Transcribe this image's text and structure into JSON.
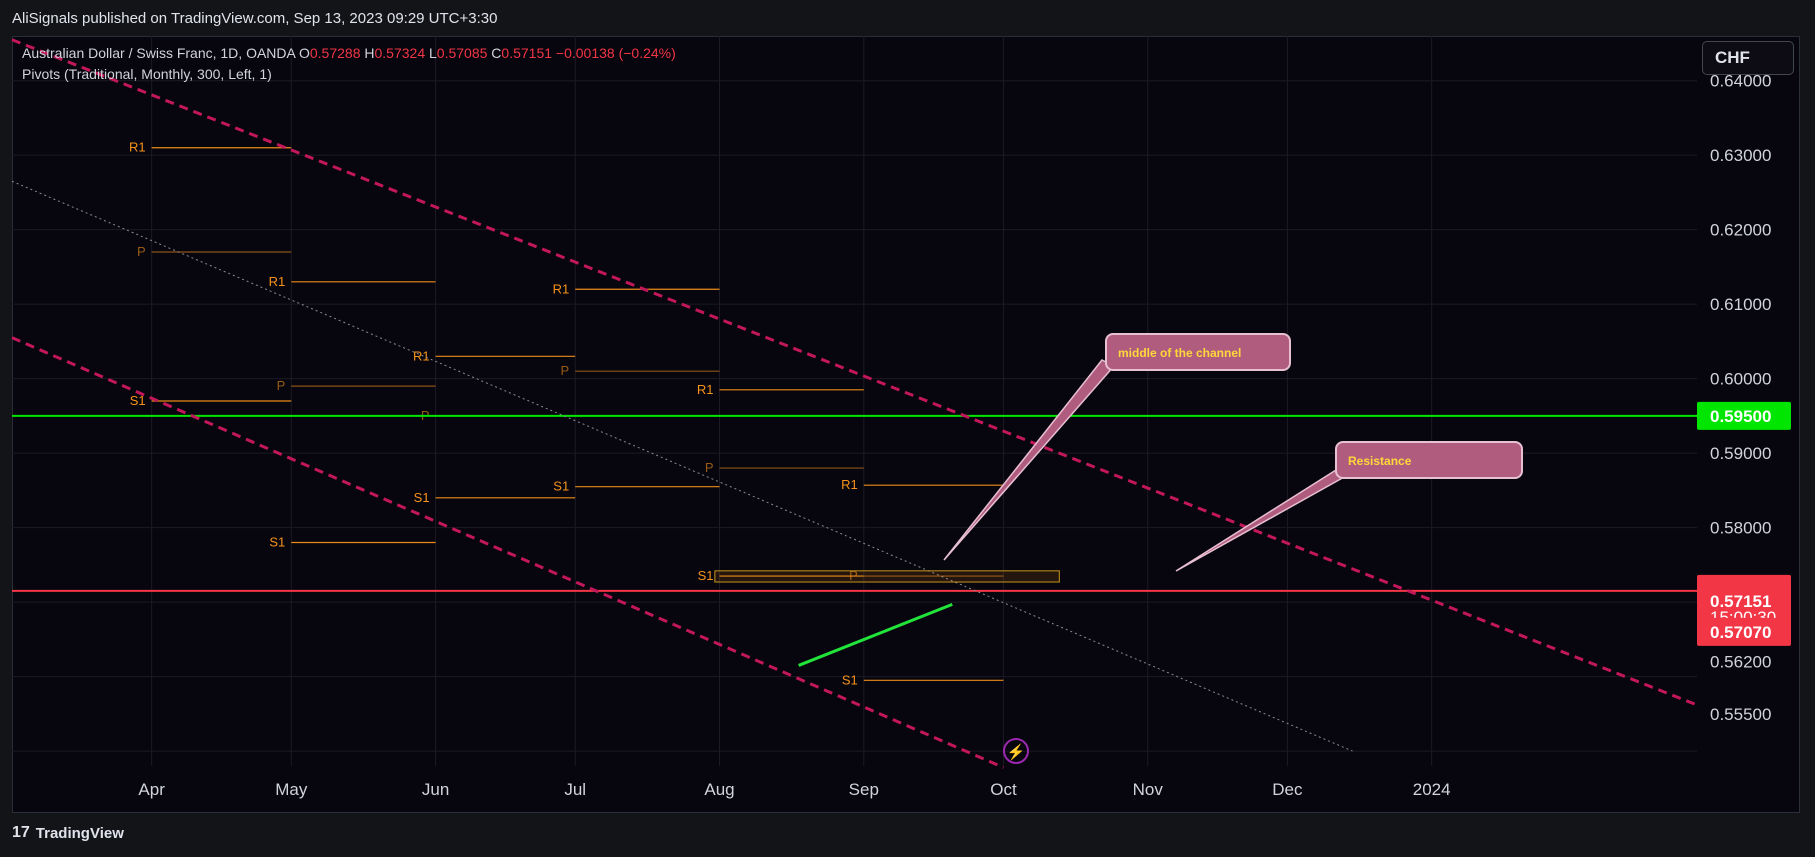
{
  "header": {
    "published": "AliSignals published on TradingView.com, Sep 13, 2023 09:29 UTC+3:30"
  },
  "legend": {
    "symbol": "Australian Dollar / Swiss Franc, 1D, OANDA",
    "o_label": "O",
    "o_val": "0.57288",
    "h_label": "H",
    "h_val": "0.57324",
    "l_label": "L",
    "l_val": "0.57085",
    "c_label": "C",
    "c_val": "0.57151",
    "change": "−0.00138 (−0.24%)",
    "indicator": "Pivots (Traditional, Monthly, 300, Left, 1)"
  },
  "currency_button": "CHF",
  "price_axis": {
    "ticks": [
      "0.64000",
      "0.63000",
      "0.62000",
      "0.61000",
      "0.60000",
      "0.59000",
      "0.58000",
      "0.56200",
      "0.55500"
    ],
    "tags": {
      "resistance": "0.59500",
      "last": "0.57151",
      "countdown": "15:00:30",
      "low": "0.57070"
    }
  },
  "time_axis": {
    "labels": [
      "Apr",
      "May",
      "Jun",
      "Jul",
      "Aug",
      "Sep",
      "Oct",
      "Nov",
      "Dec",
      "2024"
    ]
  },
  "annotations": {
    "middle": "middle of the channel",
    "resistance": "Resistance"
  },
  "footer": {
    "brand": "TradingView"
  },
  "colors": {
    "up": "#26a69a",
    "down": "#f23645",
    "pivot": "#f7931a",
    "resistance": "#00e600",
    "channel": "#c2185b",
    "callout": "#b05c7e"
  },
  "chart_data": {
    "type": "candlestick",
    "title": "Australian Dollar / Swiss Franc, 1D, OANDA",
    "ylim": [
      0.548,
      0.646
    ],
    "x_range": [
      "2023-03-02",
      "2024-02-27"
    ],
    "candles": [],
    "pivot_levels": [
      {
        "label": "R1",
        "x": [
          "2023-04-01",
          "2023-05-01"
        ],
        "y": 0.631
      },
      {
        "label": "S1",
        "x": [
          "2023-04-01",
          "2023-05-01"
        ],
        "y": 0.597
      },
      {
        "label": "P",
        "x": [
          "2023-04-01",
          "2023-05-01"
        ],
        "y": 0.617
      },
      {
        "label": "R1",
        "x": [
          "2023-05-01",
          "2023-06-01"
        ],
        "y": 0.613
      },
      {
        "label": "P",
        "x": [
          "2023-05-01",
          "2023-06-01"
        ],
        "y": 0.599
      },
      {
        "label": "S1",
        "x": [
          "2023-05-01",
          "2023-06-01"
        ],
        "y": 0.578
      },
      {
        "label": "R1",
        "x": [
          "2023-06-01",
          "2023-07-01"
        ],
        "y": 0.603
      },
      {
        "label": "P",
        "x": [
          "2023-06-01",
          "2023-07-01"
        ],
        "y": 0.595
      },
      {
        "label": "S1",
        "x": [
          "2023-06-01",
          "2023-07-01"
        ],
        "y": 0.584
      },
      {
        "label": "R1",
        "x": [
          "2023-07-01",
          "2023-08-01"
        ],
        "y": 0.612
      },
      {
        "label": "P",
        "x": [
          "2023-07-01",
          "2023-08-01"
        ],
        "y": 0.601
      },
      {
        "label": "S1",
        "x": [
          "2023-07-01",
          "2023-08-01"
        ],
        "y": 0.5855
      },
      {
        "label": "R1",
        "x": [
          "2023-08-01",
          "2023-09-01"
        ],
        "y": 0.5985
      },
      {
        "label": "P",
        "x": [
          "2023-08-01",
          "2023-09-01"
        ],
        "y": 0.588
      },
      {
        "label": "S1",
        "x": [
          "2023-08-01",
          "2023-09-01"
        ],
        "y": 0.5735
      },
      {
        "label": "R1",
        "x": [
          "2023-09-01",
          "2023-10-01"
        ],
        "y": 0.5857
      },
      {
        "label": "P",
        "x": [
          "2023-09-01",
          "2023-10-01"
        ],
        "y": 0.5735
      },
      {
        "label": "S1",
        "x": [
          "2023-09-01",
          "2023-10-01"
        ],
        "y": 0.5595
      }
    ],
    "horizontal_lines": [
      {
        "name": "resistance",
        "y": 0.595,
        "color": "#00e600"
      },
      {
        "name": "last",
        "y": 0.57151,
        "color": "#f23645"
      }
    ],
    "channel": {
      "upper": [
        [
          "2023-03-02",
          0.6455
        ],
        [
          "2024-02-27",
          0.5562
        ]
      ],
      "middle": [
        [
          "2023-03-02",
          0.6265
        ],
        [
          "2023-12-15",
          0.55
        ]
      ],
      "lower": [
        [
          "2023-03-02",
          0.6055
        ],
        [
          "2023-10-01",
          0.5478
        ]
      ]
    },
    "trendline": [
      [
        "2023-08-18",
        0.5615
      ],
      [
        "2023-09-20",
        0.5697
      ]
    ],
    "resistance_zone": {
      "x": [
        "2023-07-31",
        "2023-10-13"
      ],
      "y": [
        0.5727,
        0.5742
      ]
    }
  }
}
